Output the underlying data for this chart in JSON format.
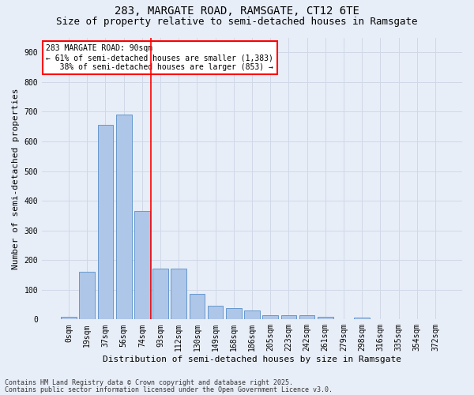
{
  "title1": "283, MARGATE ROAD, RAMSGATE, CT12 6TE",
  "title2": "Size of property relative to semi-detached houses in Ramsgate",
  "xlabel": "Distribution of semi-detached houses by size in Ramsgate",
  "ylabel": "Number of semi-detached properties",
  "categories": [
    "0sqm",
    "19sqm",
    "37sqm",
    "56sqm",
    "74sqm",
    "93sqm",
    "112sqm",
    "130sqm",
    "149sqm",
    "168sqm",
    "186sqm",
    "205sqm",
    "223sqm",
    "242sqm",
    "261sqm",
    "279sqm",
    "298sqm",
    "316sqm",
    "335sqm",
    "354sqm",
    "372sqm"
  ],
  "values": [
    8,
    160,
    655,
    690,
    365,
    170,
    170,
    87,
    47,
    37,
    30,
    15,
    13,
    13,
    10,
    0,
    7,
    2,
    0,
    0,
    0
  ],
  "bar_color": "#aec6e8",
  "bar_edge_color": "#6699cc",
  "grid_color": "#d0d8e8",
  "vline_x": 4.5,
  "vline_color": "red",
  "annotation_text": "283 MARGATE ROAD: 90sqm\n← 61% of semi-detached houses are smaller (1,383)\n   38% of semi-detached houses are larger (853) →",
  "annotation_box_color": "red",
  "annotation_fill": "white",
  "ylim": [
    0,
    950
  ],
  "yticks": [
    0,
    100,
    200,
    300,
    400,
    500,
    600,
    700,
    800,
    900
  ],
  "footnote1": "Contains HM Land Registry data © Crown copyright and database right 2025.",
  "footnote2": "Contains public sector information licensed under the Open Government Licence v3.0.",
  "bg_color": "#e8eef8",
  "title_fontsize": 10,
  "subtitle_fontsize": 9,
  "axis_label_fontsize": 8,
  "tick_fontsize": 7,
  "annot_fontsize": 7,
  "footnote_fontsize": 6
}
